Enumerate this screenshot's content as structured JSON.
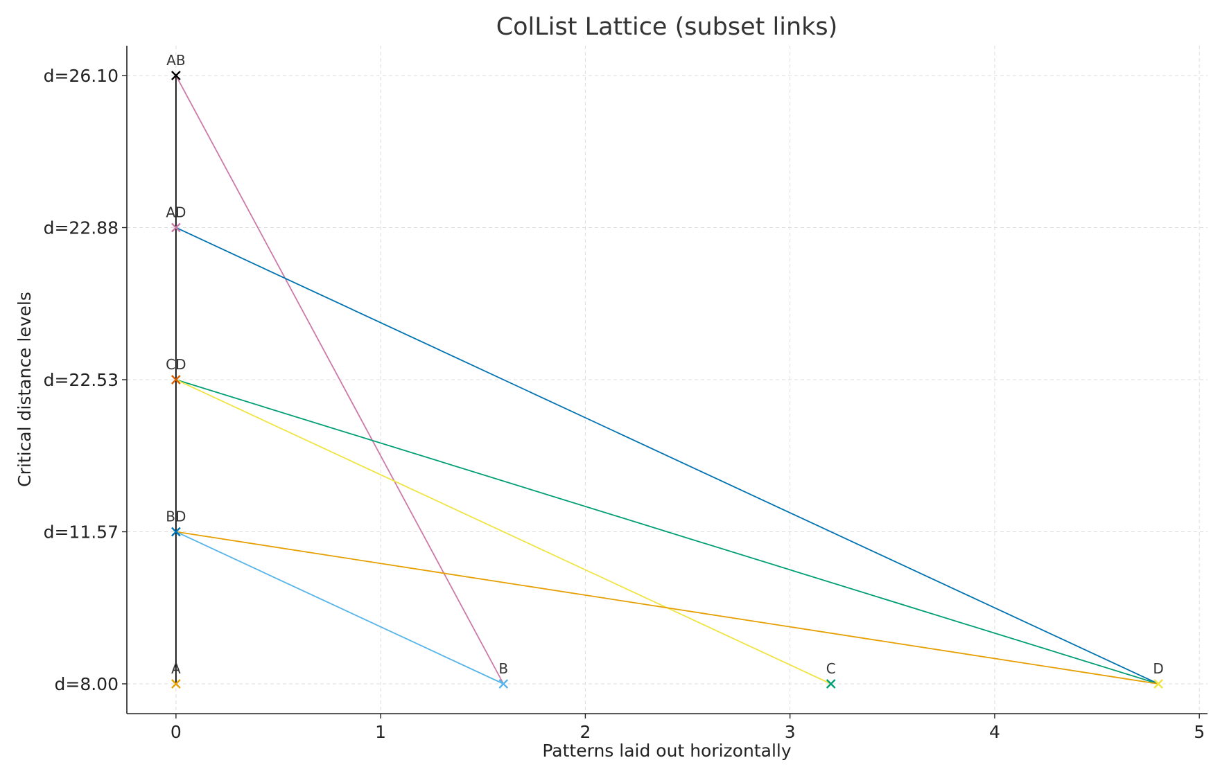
{
  "chart_data": {
    "type": "scatter",
    "title": "ColList Lattice (subset links)",
    "xlabel": "Patterns laid out horizontally",
    "ylabel": "Critical distance levels",
    "xlim": [
      -0.24,
      5.04
    ],
    "x_ticks": [
      0,
      1,
      2,
      3,
      4,
      5
    ],
    "y_levels": [
      "d=8.00",
      "d=11.57",
      "d=22.53",
      "d=22.88",
      "d=26.10"
    ],
    "grid": true,
    "points": [
      {
        "label": "A",
        "x": 0.0,
        "level": 0,
        "color": "#E69F00"
      },
      {
        "label": "B",
        "x": 1.6,
        "level": 0,
        "color": "#56B4E9"
      },
      {
        "label": "C",
        "x": 3.2,
        "level": 0,
        "color": "#009E73"
      },
      {
        "label": "D",
        "x": 4.8,
        "level": 0,
        "color": "#F0E442"
      },
      {
        "label": "BD",
        "x": 0.0,
        "level": 1,
        "color": "#0072B2"
      },
      {
        "label": "CD",
        "x": 0.0,
        "level": 2,
        "color": "#D55E00"
      },
      {
        "label": "AD",
        "x": 0.0,
        "level": 3,
        "color": "#CC79A7"
      },
      {
        "label": "AB",
        "x": 0.0,
        "level": 4,
        "color": "#000000"
      }
    ],
    "links": [
      {
        "from": "A",
        "to": "AB",
        "color": "#000000"
      },
      {
        "from": "B",
        "to": "AB",
        "color": "#CC79A7"
      },
      {
        "from": "D",
        "to": "AD",
        "color": "#0072B2"
      },
      {
        "from": "D",
        "to": "CD",
        "color": "#009E73"
      },
      {
        "from": "C",
        "to": "CD",
        "color": "#F0E442"
      },
      {
        "from": "D",
        "to": "BD",
        "color": "#E69F00"
      },
      {
        "from": "B",
        "to": "BD",
        "color": "#56B4E9"
      }
    ]
  }
}
